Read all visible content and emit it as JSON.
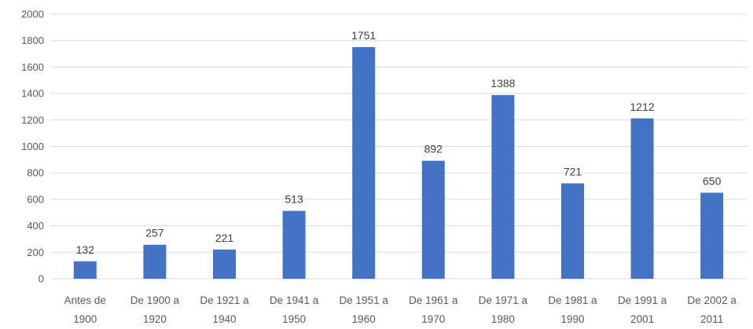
{
  "chart_data": {
    "type": "bar",
    "categories": [
      [
        "Antes de",
        "1900"
      ],
      [
        "De 1900 a",
        "1920"
      ],
      [
        "De 1921 a",
        "1940"
      ],
      [
        "De 1941 a",
        "1950"
      ],
      [
        "De 1951 a",
        "1960"
      ],
      [
        "De 1961 a",
        "1970"
      ],
      [
        "De 1971 a",
        "1980"
      ],
      [
        "De 1981 a",
        "1990"
      ],
      [
        "De 1991 a",
        "2001"
      ],
      [
        "De 2002 a",
        "2011"
      ]
    ],
    "values": [
      132,
      257,
      221,
      513,
      1751,
      892,
      1388,
      721,
      1212,
      650
    ],
    "ylim": [
      0,
      2000
    ],
    "yticks": [
      0,
      200,
      400,
      600,
      800,
      1000,
      1200,
      1400,
      1600,
      1800,
      2000
    ],
    "grid": true,
    "bar_color": "#4472c4",
    "title": "",
    "xlabel": "",
    "ylabel": ""
  }
}
